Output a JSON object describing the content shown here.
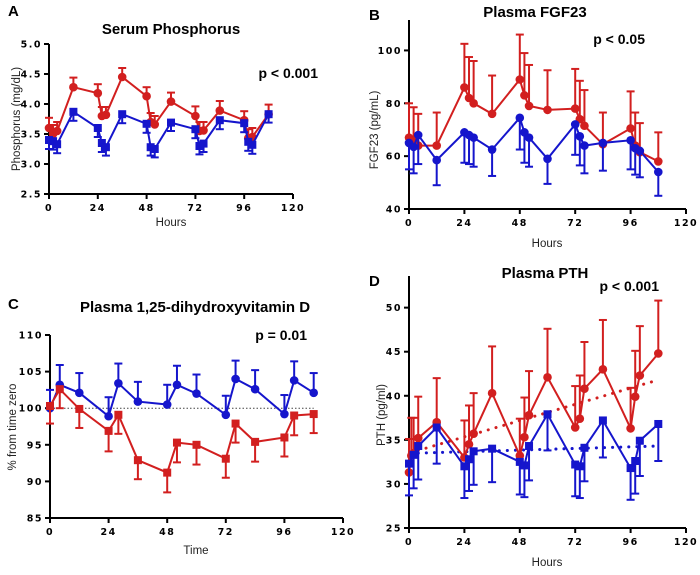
{
  "colors": {
    "red": "#d21f1f",
    "blue": "#1515cc",
    "axis": "#000000"
  },
  "chart_data": [
    {
      "id": "A",
      "type": "line",
      "letter": "A",
      "title": "Serum Phosphorus",
      "annotation": "p < 0.001",
      "xlabel": "Hours",
      "ylabel": "Phosphorus (mg/dL)",
      "xlim": [
        0,
        120
      ],
      "ylim": [
        2.5,
        5.0
      ],
      "xticks": [
        0,
        24,
        48,
        72,
        96,
        120
      ],
      "xtick_labels": [
        "0",
        "24",
        "48",
        "72",
        "96",
        "120"
      ],
      "yticks": [
        2.5,
        3.0,
        3.5,
        4.0,
        4.5,
        5.0
      ],
      "ytick_labels": [
        "2.5",
        "3.0",
        "3.5",
        "4.0",
        "4.5",
        "5.0"
      ],
      "ref_line": null,
      "series": [
        {
          "name": "red",
          "marker": "circle",
          "err_dir": "up",
          "x": [
            0,
            2,
            4,
            12,
            24,
            26,
            28,
            36,
            48,
            50,
            52,
            60,
            72,
            74,
            76,
            84,
            96,
            98,
            100,
            108
          ],
          "y": [
            3.6,
            3.5,
            3.55,
            4.28,
            4.18,
            3.8,
            3.82,
            4.45,
            4.13,
            3.7,
            3.66,
            4.04,
            3.8,
            3.55,
            3.56,
            3.89,
            3.73,
            3.43,
            3.45,
            3.83
          ],
          "err": [
            0.17,
            0.15,
            0.15,
            0.16,
            0.15,
            0.15,
            0.13,
            0.15,
            0.15,
            0.15,
            0.14,
            0.15,
            0.16,
            0.15,
            0.14,
            0.16,
            0.15,
            0.15,
            0.15,
            0.16
          ]
        },
        {
          "name": "blue",
          "marker": "square",
          "err_dir": "down",
          "x": [
            0,
            2,
            4,
            12,
            24,
            26,
            28,
            36,
            48,
            50,
            52,
            60,
            72,
            74,
            76,
            84,
            96,
            98,
            100,
            108
          ],
          "y": [
            3.4,
            3.38,
            3.33,
            3.87,
            3.6,
            3.35,
            3.28,
            3.83,
            3.67,
            3.28,
            3.25,
            3.69,
            3.58,
            3.3,
            3.34,
            3.73,
            3.68,
            3.37,
            3.32,
            3.83
          ],
          "err": [
            0.15,
            0.14,
            0.15,
            0.15,
            0.15,
            0.15,
            0.14,
            0.15,
            0.15,
            0.14,
            0.14,
            0.14,
            0.15,
            0.14,
            0.14,
            0.15,
            0.15,
            0.15,
            0.15,
            0.14
          ]
        }
      ],
      "trend_lines": []
    },
    {
      "id": "B",
      "type": "line",
      "letter": "B",
      "title": "Plasma FGF23",
      "annotation": "p < 0.05",
      "xlabel": "Hours",
      "ylabel": "FGF23 (pg/mL)",
      "xlim": [
        0,
        120
      ],
      "ylim": [
        40,
        110
      ],
      "xticks": [
        0,
        24,
        48,
        72,
        96,
        120
      ],
      "xtick_labels": [
        "0",
        "24",
        "48",
        "72",
        "96",
        "120"
      ],
      "yticks": [
        40,
        60,
        80,
        100
      ],
      "ytick_labels": [
        "40",
        "60",
        "80",
        "100"
      ],
      "ref_line": null,
      "series": [
        {
          "name": "red",
          "marker": "circle",
          "err_dir": "up",
          "x": [
            0,
            2,
            4,
            12,
            24,
            26,
            28,
            36,
            48,
            50,
            52,
            60,
            72,
            74,
            76,
            84,
            96,
            98,
            100,
            108
          ],
          "y": [
            67,
            66,
            64,
            64,
            86,
            82,
            80,
            76,
            89,
            83,
            79,
            77.5,
            78,
            74,
            71.5,
            64.5,
            70.5,
            64,
            61.5,
            58
          ],
          "err": [
            13,
            12.5,
            12,
            12.5,
            16.5,
            15.5,
            16,
            14.5,
            17,
            16,
            15.5,
            15,
            15,
            14.5,
            13.5,
            12,
            14,
            12.5,
            11,
            11
          ]
        },
        {
          "name": "blue",
          "marker": "circle",
          "err_dir": "down",
          "x": [
            0,
            2,
            4,
            12,
            24,
            26,
            28,
            36,
            48,
            50,
            52,
            60,
            72,
            74,
            76,
            84,
            96,
            98,
            100,
            108
          ],
          "y": [
            65,
            63.5,
            68,
            58.5,
            69,
            68,
            67,
            62.5,
            74.5,
            69,
            67,
            59,
            72,
            67.5,
            64,
            65,
            66,
            63,
            62,
            54
          ],
          "err": [
            10,
            10,
            11,
            9.5,
            11.5,
            11,
            11,
            10,
            12,
            11.5,
            11,
            9.5,
            11.5,
            11,
            10.5,
            10.5,
            11,
            10,
            10,
            9
          ]
        }
      ],
      "trend_lines": []
    },
    {
      "id": "C",
      "type": "line",
      "letter": "C",
      "title": "Plasma 1,25-dihydroxyvitamin D",
      "annotation": "p = 0.01",
      "xlabel": "Time",
      "ylabel": "% from time zero",
      "xlim": [
        0,
        120
      ],
      "ylim": [
        85,
        110
      ],
      "xticks": [
        0,
        24,
        48,
        72,
        96,
        120
      ],
      "xtick_labels": [
        "0",
        "24",
        "48",
        "72",
        "96",
        "120"
      ],
      "yticks": [
        85,
        90,
        95,
        100,
        105,
        110
      ],
      "ytick_labels": [
        "85",
        "90",
        "95",
        "100",
        "105",
        "110"
      ],
      "ref_line": {
        "y": 100,
        "x_end": 108,
        "style": "dotted"
      },
      "series": [
        {
          "name": "blue",
          "marker": "circle",
          "err_dir": "up",
          "x": [
            0,
            4,
            12,
            24,
            28,
            36,
            48,
            52,
            60,
            72,
            76,
            84,
            96,
            100,
            108
          ],
          "y": [
            100,
            103.2,
            102.1,
            98.9,
            103.4,
            100.9,
            100.5,
            103.2,
            102,
            99.1,
            104,
            102.6,
            99.2,
            103.8,
            102.1
          ],
          "err": [
            2.5,
            2.7,
            2.7,
            2.6,
            2.7,
            2.7,
            2.7,
            2.6,
            2.6,
            2.6,
            2.5,
            2.6,
            2.6,
            2.6,
            2.7
          ]
        },
        {
          "name": "red",
          "marker": "square",
          "err_dir": "down",
          "x": [
            0,
            4,
            12,
            24,
            28,
            36,
            48,
            52,
            60,
            72,
            76,
            84,
            96,
            100,
            108
          ],
          "y": [
            100.3,
            102.6,
            99.9,
            96.9,
            99.1,
            92.9,
            91.2,
            95.3,
            95,
            93.1,
            97.9,
            95.4,
            96,
            99,
            99.2
          ],
          "err": [
            2.4,
            2.6,
            2.6,
            2.8,
            2.6,
            2.6,
            2.7,
            2.7,
            2.7,
            2.6,
            2.6,
            2.7,
            2.6,
            2.7,
            2.6
          ]
        }
      ],
      "trend_lines": []
    },
    {
      "id": "D",
      "type": "line",
      "letter": "D",
      "title": "Plasma PTH",
      "annotation": "p < 0.001",
      "xlabel": "Hours",
      "ylabel": "PTH (pg/ml)",
      "xlim": [
        0,
        120
      ],
      "ylim": [
        25,
        52
      ],
      "xticks": [
        0,
        24,
        48,
        72,
        96,
        120
      ],
      "xtick_labels": [
        "0",
        "24",
        "48",
        "72",
        "96",
        "120"
      ],
      "yticks": [
        25,
        30,
        35,
        40,
        45,
        50
      ],
      "ytick_labels": [
        "25",
        "30",
        "35",
        "40",
        "45",
        "50"
      ],
      "ref_line": null,
      "series": [
        {
          "name": "red",
          "marker": "circle",
          "err_dir": "up",
          "x": [
            0,
            1,
            2,
            4,
            12,
            24,
            26,
            28,
            36,
            48,
            50,
            52,
            60,
            72,
            74,
            76,
            84,
            96,
            98,
            100,
            108
          ],
          "y": [
            31.3,
            33.2,
            33.5,
            35.2,
            37,
            33,
            34.5,
            35.7,
            40.3,
            33.2,
            35.3,
            37.8,
            42.1,
            36.4,
            37.4,
            40.8,
            43,
            36.3,
            39.9,
            42.3,
            44.8
          ],
          "err": [
            3.8,
            4.3,
            4,
            4.7,
            5,
            4.2,
            4.4,
            4.6,
            5.3,
            4.2,
            4.5,
            5,
            5.5,
            4.7,
            4.9,
            5.3,
            5.6,
            4.6,
            5.2,
            5.6,
            6
          ]
        },
        {
          "name": "blue",
          "marker": "square",
          "err_dir": "down",
          "x": [
            0,
            2,
            4,
            12,
            24,
            26,
            28,
            36,
            48,
            50,
            52,
            60,
            72,
            74,
            76,
            84,
            96,
            98,
            100,
            108
          ],
          "y": [
            32.3,
            33.3,
            34.3,
            36.4,
            32,
            32.8,
            33.7,
            34,
            32.5,
            32.1,
            34.3,
            37.9,
            32.2,
            32,
            34.1,
            37.2,
            31.8,
            32.6,
            34.9,
            36.8
          ],
          "err": [
            3.6,
            3.8,
            3.8,
            4.1,
            3.6,
            3.6,
            3.8,
            3.8,
            3.7,
            3.6,
            3.9,
            4.1,
            3.6,
            3.6,
            3.8,
            4.2,
            3.6,
            3.7,
            4,
            4.2
          ]
        }
      ],
      "trend_lines": [
        {
          "name": "red-trend",
          "color": "red",
          "x": [
            4,
            108
          ],
          "y": [
            33.8,
            41.8
          ]
        },
        {
          "name": "blue-trend",
          "color": "blue",
          "x": [
            4,
            108
          ],
          "y": [
            33.5,
            34.3
          ]
        }
      ]
    }
  ]
}
